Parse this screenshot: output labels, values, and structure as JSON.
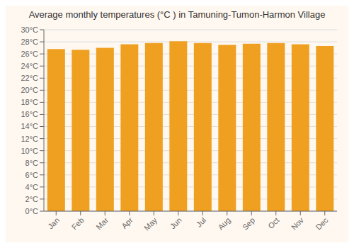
{
  "chart_data": {
    "type": "bar",
    "title": "Average monthly temperatures (°C ) in Tamuning-Tumon-Harmon Village",
    "categories": [
      "Jan",
      "Feb",
      "Mar",
      "Apr",
      "May",
      "Jun",
      "Jul",
      "Aug",
      "Sep",
      "Oct",
      "Nov",
      "Dec"
    ],
    "values": [
      26.8,
      26.7,
      27.0,
      27.6,
      27.8,
      28.1,
      27.8,
      27.5,
      27.7,
      27.8,
      27.6,
      27.3
    ],
    "color": "#F0A020",
    "ylim": [
      0,
      30
    ],
    "yticks": [
      {
        "value": 0,
        "label": "0°C"
      },
      {
        "value": 2,
        "label": "2°C"
      },
      {
        "value": 4,
        "label": "4°C"
      },
      {
        "value": 6,
        "label": "6°C"
      },
      {
        "value": 8,
        "label": "8°C"
      },
      {
        "value": 10,
        "label": "10°C"
      },
      {
        "value": 12,
        "label": "12°C"
      },
      {
        "value": 14,
        "label": "14°C"
      },
      {
        "value": 16,
        "label": "16°C"
      },
      {
        "value": 18,
        "label": "18°C"
      },
      {
        "value": 20,
        "label": "20°C"
      },
      {
        "value": 22,
        "label": "22°C"
      },
      {
        "value": 24,
        "label": "24°C"
      },
      {
        "value": 26,
        "label": "26°C"
      },
      {
        "value": 28,
        "label": "28°C"
      },
      {
        "value": 30,
        "label": "30°C"
      }
    ],
    "grid": true
  }
}
